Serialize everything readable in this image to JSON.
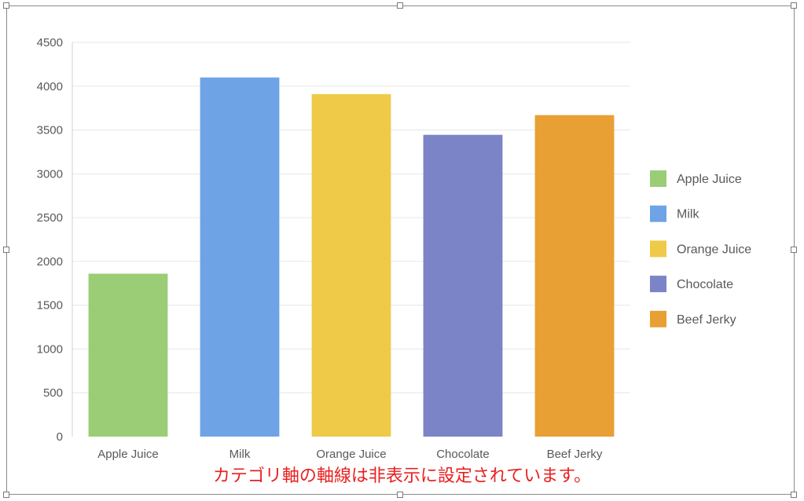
{
  "chart_data": {
    "type": "bar",
    "categories": [
      "Apple Juice",
      "Milk",
      "Orange Juice",
      "Chocolate",
      "Beef Jerky"
    ],
    "values": [
      1860,
      4100,
      3910,
      3445,
      3670
    ],
    "colors": [
      "#9acd76",
      "#6ea4e6",
      "#eeca48",
      "#7b84c6",
      "#e89f33"
    ],
    "ylim": [
      0,
      4500
    ],
    "yticks": [
      0,
      500,
      1000,
      1500,
      2000,
      2500,
      3000,
      3500,
      4000,
      4500
    ],
    "grid": true,
    "legend": {
      "placement": "right",
      "entries": [
        "Apple Juice",
        "Milk",
        "Orange Juice",
        "Chocolate",
        "Beef Jerky"
      ]
    },
    "category_axis_line": false
  },
  "annotation": "カテゴリ軸の軸線は非表示に設定されています。"
}
